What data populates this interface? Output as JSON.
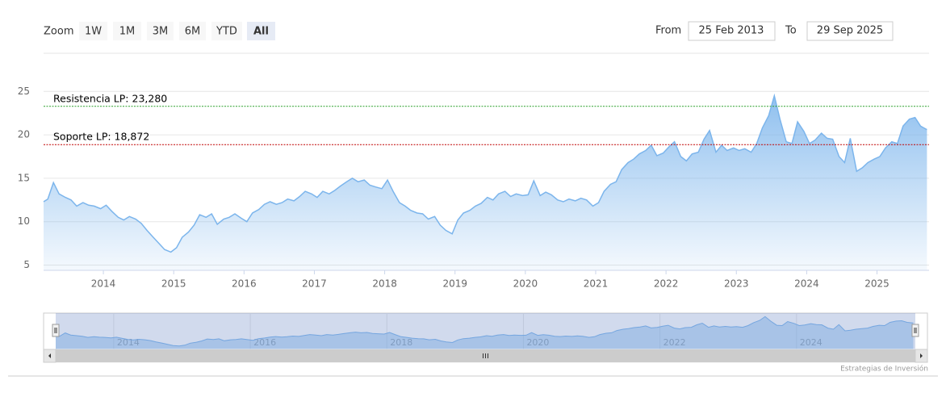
{
  "range_selector": {
    "zoom_label": "Zoom",
    "buttons": [
      "1W",
      "1M",
      "3M",
      "6M",
      "YTD",
      "All"
    ],
    "selected": 5,
    "from_label": "From",
    "from_value": "25 Feb 2013",
    "to_label": "To",
    "to_value": "29 Sep 2025"
  },
  "credits": "Estrategias de Inversión",
  "chart_data": {
    "type": "area",
    "color": "#7cb5ec",
    "grid": true,
    "x": [
      2013.15,
      2013.21,
      2013.29,
      2013.37,
      2013.46,
      2013.54,
      2013.62,
      2013.71,
      2013.79,
      2013.87,
      2013.96,
      2014.04,
      2014.12,
      2014.21,
      2014.29,
      2014.37,
      2014.46,
      2014.54,
      2014.62,
      2014.71,
      2014.79,
      2014.87,
      2014.96,
      2015.04,
      2015.12,
      2015.21,
      2015.29,
      2015.37,
      2015.46,
      2015.54,
      2015.62,
      2015.71,
      2015.79,
      2015.87,
      2015.96,
      2016.04,
      2016.12,
      2016.21,
      2016.29,
      2016.37,
      2016.46,
      2016.54,
      2016.62,
      2016.71,
      2016.79,
      2016.87,
      2016.96,
      2017.04,
      2017.12,
      2017.21,
      2017.29,
      2017.37,
      2017.46,
      2017.54,
      2017.62,
      2017.71,
      2017.79,
      2017.87,
      2017.96,
      2018.04,
      2018.12,
      2018.21,
      2018.29,
      2018.37,
      2018.46,
      2018.54,
      2018.62,
      2018.71,
      2018.79,
      2018.87,
      2018.96,
      2019.04,
      2019.12,
      2019.21,
      2019.29,
      2019.37,
      2019.46,
      2019.54,
      2019.62,
      2019.71,
      2019.79,
      2019.87,
      2019.96,
      2020.04,
      2020.12,
      2020.21,
      2020.29,
      2020.37,
      2020.46,
      2020.54,
      2020.62,
      2020.71,
      2020.79,
      2020.87,
      2020.96,
      2021.04,
      2021.12,
      2021.21,
      2021.29,
      2021.37,
      2021.46,
      2021.54,
      2021.62,
      2021.71,
      2021.79,
      2021.87,
      2021.96,
      2022.04,
      2022.12,
      2022.21,
      2022.29,
      2022.37,
      2022.46,
      2022.54,
      2022.62,
      2022.71,
      2022.79,
      2022.87,
      2022.96,
      2023.04,
      2023.12,
      2023.21,
      2023.29,
      2023.37,
      2023.46,
      2023.54,
      2023.62,
      2023.71,
      2023.79,
      2023.87,
      2023.96,
      2024.04,
      2024.12,
      2024.21,
      2024.29,
      2024.37,
      2024.46,
      2024.54,
      2024.62,
      2024.71,
      2024.79,
      2024.87,
      2024.96,
      2025.04,
      2025.12,
      2025.21,
      2025.29,
      2025.37,
      2025.46,
      2025.54,
      2025.62,
      2025.71
    ],
    "values": [
      12.3,
      12.6,
      14.5,
      13.2,
      12.8,
      12.5,
      11.8,
      12.2,
      11.9,
      11.8,
      11.5,
      11.9,
      11.2,
      10.5,
      10.2,
      10.6,
      10.3,
      9.8,
      9.0,
      8.2,
      7.5,
      6.8,
      6.5,
      7.0,
      8.2,
      8.8,
      9.6,
      10.8,
      10.5,
      10.9,
      9.7,
      10.3,
      10.5,
      10.9,
      10.4,
      10.0,
      11.0,
      11.4,
      12.0,
      12.3,
      12.0,
      12.2,
      12.6,
      12.4,
      12.9,
      13.5,
      13.2,
      12.8,
      13.5,
      13.2,
      13.6,
      14.1,
      14.6,
      15.0,
      14.6,
      14.8,
      14.2,
      14.0,
      13.8,
      14.8,
      13.5,
      12.2,
      11.8,
      11.3,
      11.0,
      10.9,
      10.3,
      10.6,
      9.6,
      9.0,
      8.6,
      10.2,
      11.0,
      11.3,
      11.8,
      12.1,
      12.8,
      12.5,
      13.2,
      13.5,
      12.9,
      13.2,
      13.0,
      13.1,
      14.7,
      13.0,
      13.4,
      13.1,
      12.5,
      12.3,
      12.6,
      12.4,
      12.7,
      12.5,
      11.8,
      12.2,
      13.5,
      14.3,
      14.6,
      16.0,
      16.8,
      17.2,
      17.8,
      18.2,
      18.8,
      17.6,
      17.9,
      18.6,
      19.2,
      17.5,
      17.0,
      17.8,
      18.0,
      19.5,
      20.5,
      18.0,
      18.8,
      18.2,
      18.5,
      18.2,
      18.4,
      18.0,
      19.0,
      20.8,
      22.2,
      24.5,
      21.8,
      19.2,
      19.0,
      21.5,
      20.4,
      19.0,
      19.4,
      20.2,
      19.6,
      19.5,
      17.5,
      16.8,
      19.6,
      15.8,
      16.2,
      16.8,
      17.2,
      17.5,
      18.5,
      19.2,
      19.0,
      21.0,
      21.8,
      22.0,
      21.0,
      20.6
    ],
    "xlim": [
      2013.15,
      2025.74
    ],
    "xticks": [
      2014,
      2015,
      2016,
      2017,
      2018,
      2019,
      2020,
      2021,
      2022,
      2023,
      2024,
      2025
    ],
    "ylim": [
      4.4,
      26.7
    ],
    "yticks": [
      5,
      10,
      15,
      20,
      25
    ],
    "plot_lines": [
      {
        "value": 23.28,
        "label": "Resistencia LP: 23,280",
        "color": "#2ca02c"
      },
      {
        "value": 18.872,
        "label": "Soporte LP: 18,872",
        "color": "#c00000"
      }
    ],
    "navigator": {
      "xticks": [
        2014,
        2016,
        2018,
        2020,
        2022,
        2024
      ]
    }
  }
}
